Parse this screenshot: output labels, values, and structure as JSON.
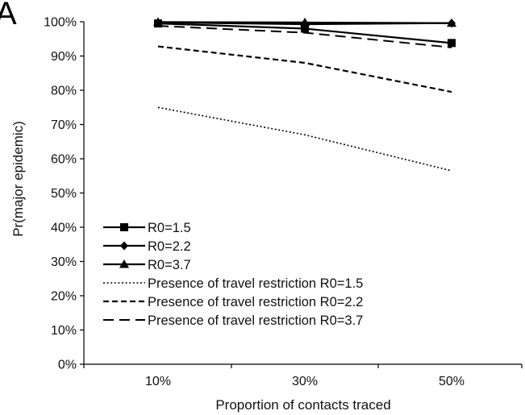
{
  "panel_label": "A",
  "chart_data": {
    "type": "line",
    "title": "",
    "xlabel": "Proportion of contacts traced",
    "ylabel": "Pr(major epidemic)",
    "categories": [
      "10%",
      "30%",
      "50%"
    ],
    "x": [
      10,
      30,
      50
    ],
    "ylim": [
      0,
      100
    ],
    "yticks": [
      "0%",
      "10%",
      "20%",
      "30%",
      "40%",
      "50%",
      "60%",
      "70%",
      "80%",
      "90%",
      "100%"
    ],
    "grid": false,
    "legend_position": "bottom-left",
    "series": [
      {
        "name": "R0=1.5",
        "values": [
          99.5,
          98,
          93.8
        ],
        "style": "solid",
        "marker": "square",
        "color": "#000000"
      },
      {
        "name": "R0=2.2",
        "values": [
          99.8,
          99.3,
          99.6
        ],
        "style": "solid",
        "marker": "diamond",
        "color": "#000000"
      },
      {
        "name": "R0=3.7",
        "values": [
          99.9,
          99.8,
          99.6
        ],
        "style": "solid",
        "marker": "triangle",
        "color": "#000000"
      },
      {
        "name": "Presence of travel restriction R0=1.5",
        "values": [
          75,
          67,
          56.5
        ],
        "style": "dotted",
        "marker": "none",
        "color": "#000000"
      },
      {
        "name": "Presence of travel restriction R0=2.2",
        "values": [
          92.8,
          88,
          79.5
        ],
        "style": "dashed",
        "marker": "none",
        "color": "#000000"
      },
      {
        "name": "Presence of travel restriction R0=3.7",
        "values": [
          98.8,
          96.8,
          92.5
        ],
        "style": "longdash",
        "marker": "none",
        "color": "#000000"
      }
    ]
  }
}
